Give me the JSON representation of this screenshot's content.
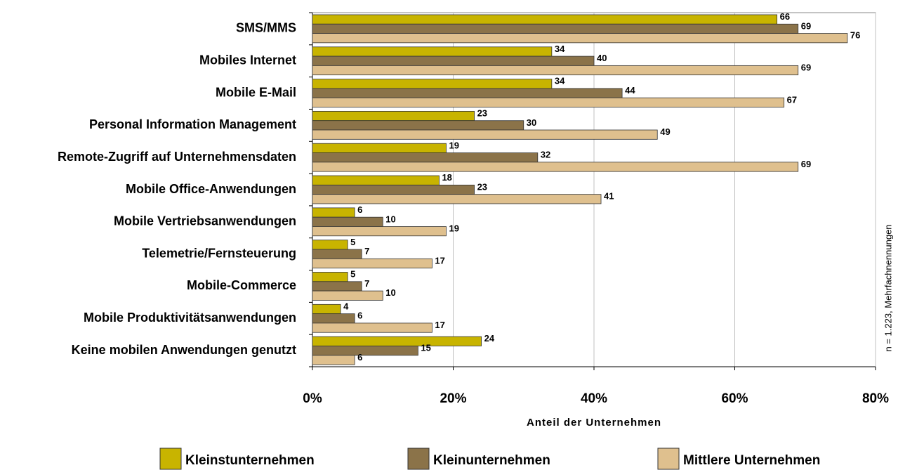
{
  "chart_data": {
    "type": "bar",
    "orientation": "horizontal",
    "categories": [
      "SMS/MMS",
      "Mobiles Internet",
      "Mobile E-Mail",
      "Personal Information Management",
      "Remote-Zugriff auf Unternehmensdaten",
      "Mobile Office-Anwendungen",
      "Mobile Vertriebsanwendungen",
      "Telemetrie/Fernsteuerung",
      "Mobile-Commerce",
      "Mobile Produktivitätsanwendungen",
      "Keine mobilen Anwendungen genutzt"
    ],
    "series": [
      {
        "name": "Kleinstunternehmen",
        "color": "#c8b400",
        "values": [
          66,
          34,
          34,
          23,
          19,
          18,
          6,
          5,
          5,
          4,
          24
        ]
      },
      {
        "name": "Kleinunternehmen",
        "color": "#8b7349",
        "values": [
          69,
          40,
          44,
          30,
          32,
          23,
          10,
          7,
          7,
          6,
          15
        ]
      },
      {
        "name": "Mittlere Unternehmen",
        "color": "#dfc08e",
        "values": [
          76,
          69,
          67,
          49,
          69,
          41,
          19,
          17,
          10,
          17,
          6
        ]
      }
    ],
    "xlabel": "Anteil der Unternehmen",
    "xlim": [
      0,
      80
    ],
    "xticks": [
      {
        "value": 0,
        "label": "0%"
      },
      {
        "value": 20,
        "label": "20%"
      },
      {
        "value": 40,
        "label": "40%"
      },
      {
        "value": 60,
        "label": "60%"
      },
      {
        "value": 80,
        "label": "80%"
      }
    ],
    "grid": true,
    "legend": "bottom",
    "note": "n = 1.223, Mehrfachnennungen"
  }
}
